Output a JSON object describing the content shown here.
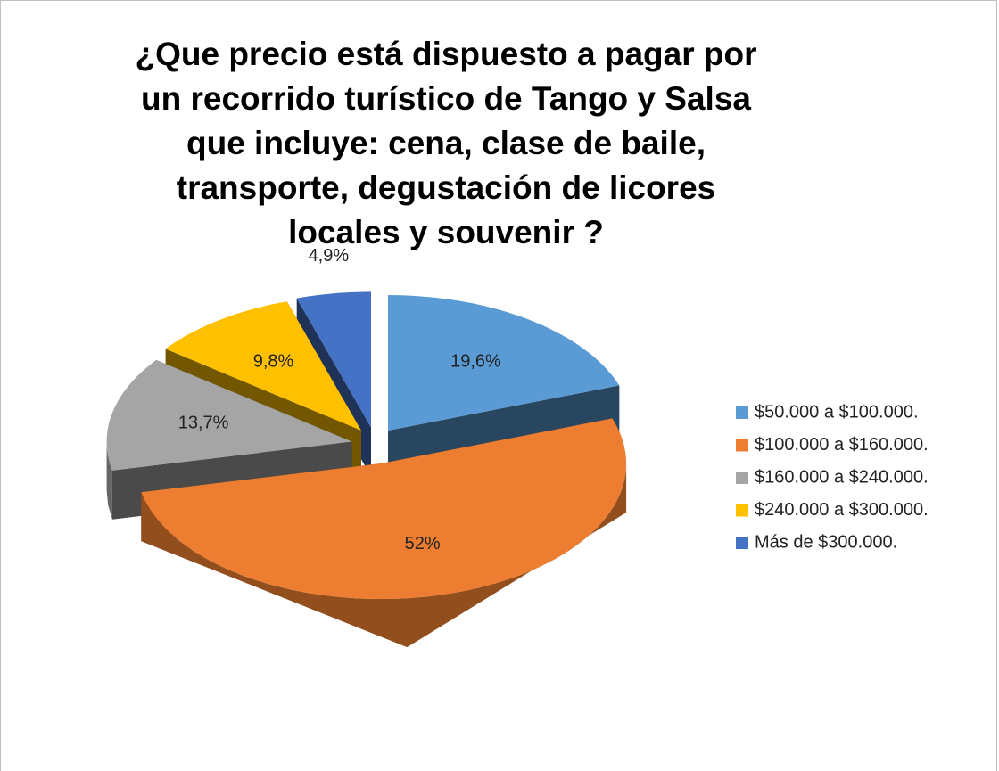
{
  "chart_data": {
    "type": "pie3d",
    "title": "¿Que precio está dispuesto a pagar por un recorrido turístico de Tango y Salsa que incluye: cena, clase de baile, transporte, degustación de licores locales y souvenir ?",
    "categories": [
      "$50.000 a $100.000.",
      "$100.000 a $160.000.",
      "$160.000 a $240.000.",
      "$240.000 a $300.000.",
      "Más de $300.000."
    ],
    "values": [
      19.6,
      52,
      13.7,
      9.8,
      4.9
    ],
    "value_labels": [
      "19,6%",
      "52%",
      "13,7%",
      "9,8%",
      "4,9%"
    ],
    "colors": [
      "#5b9bd5",
      "#ed7d31",
      "#a5a5a5",
      "#ffc000",
      "#4472c4"
    ],
    "legend": "right"
  }
}
